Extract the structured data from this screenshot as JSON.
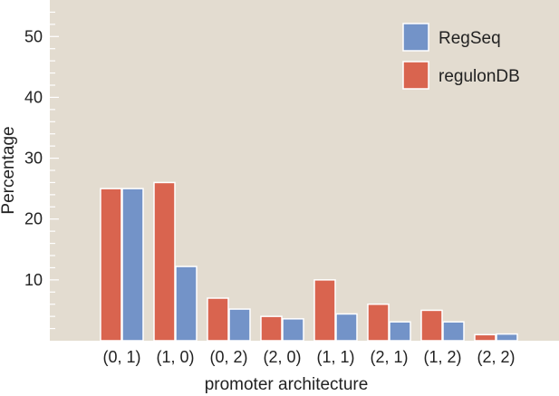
{
  "chart_data": {
    "type": "bar",
    "title": "",
    "xlabel": "promoter architecture",
    "ylabel": "Percentage",
    "categories": [
      "(0, 1)",
      "(1, 0)",
      "(0, 2)",
      "(2, 0)",
      "(1, 1)",
      "(2, 1)",
      "(1, 2)",
      "(2, 2)"
    ],
    "series": [
      {
        "name": "regulonDB",
        "color": "#d9644f",
        "values": [
          25,
          26,
          7,
          4,
          10,
          6,
          5,
          1
        ]
      },
      {
        "name": "RegSeq",
        "color": "#7393c8",
        "values": [
          25,
          12.2,
          5.2,
          3.6,
          4.4,
          3.1,
          3.1,
          1.1
        ]
      }
    ],
    "yticks": [
      "10",
      "20",
      "30",
      "40",
      "50"
    ],
    "ylim": [
      0,
      56
    ],
    "grid": false,
    "legend_position": "top-right",
    "legend_order": [
      "RegSeq",
      "regulonDB"
    ],
    "background_color": "#e3dcd0"
  }
}
